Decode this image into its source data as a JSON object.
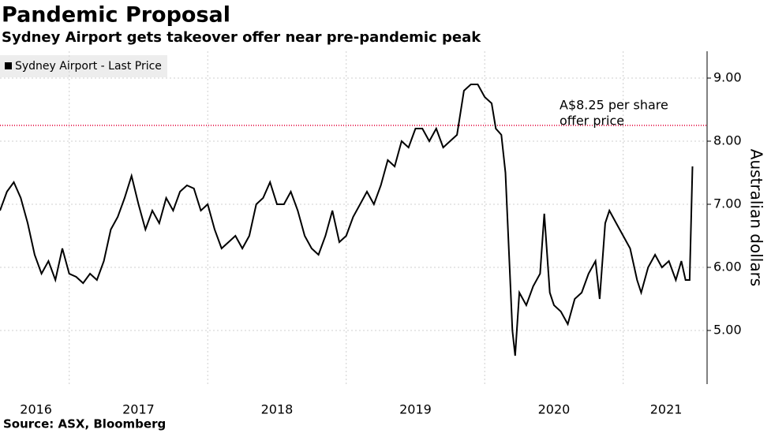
{
  "chart_data": {
    "type": "line",
    "title": "Pandemic Proposal",
    "subtitle": "Sydney Airport gets takeover offer near pre-pandemic peak",
    "y_label": "Australian dollars",
    "source": "Source: ASX, Bloomberg",
    "series": [
      {
        "name": "Sydney Airport - Last Price",
        "color": "#000000",
        "x": [
          2016.5,
          2016.55,
          2016.6,
          2016.65,
          2016.7,
          2016.75,
          2016.8,
          2016.85,
          2016.9,
          2016.95,
          2017.0,
          2017.05,
          2017.1,
          2017.15,
          2017.2,
          2017.25,
          2017.3,
          2017.35,
          2017.4,
          2017.45,
          2017.5,
          2017.55,
          2017.6,
          2017.65,
          2017.7,
          2017.75,
          2017.8,
          2017.85,
          2017.9,
          2017.95,
          2018.0,
          2018.05,
          2018.1,
          2018.15,
          2018.2,
          2018.25,
          2018.3,
          2018.35,
          2018.4,
          2018.45,
          2018.5,
          2018.55,
          2018.6,
          2018.65,
          2018.7,
          2018.75,
          2018.8,
          2018.85,
          2018.9,
          2018.95,
          2019.0,
          2019.05,
          2019.1,
          2019.15,
          2019.2,
          2019.25,
          2019.3,
          2019.35,
          2019.4,
          2019.45,
          2019.5,
          2019.55,
          2019.6,
          2019.65,
          2019.7,
          2019.75,
          2019.8,
          2019.85,
          2019.9,
          2019.95,
          2020.0,
          2020.05,
          2020.08,
          2020.12,
          2020.15,
          2020.18,
          2020.2,
          2020.22,
          2020.25,
          2020.3,
          2020.35,
          2020.4,
          2020.43,
          2020.47,
          2020.5,
          2020.55,
          2020.6,
          2020.65,
          2020.7,
          2020.75,
          2020.8,
          2020.83,
          2020.87,
          2020.9,
          2020.95,
          2021.0,
          2021.05,
          2021.1,
          2021.13,
          2021.18,
          2021.23,
          2021.28,
          2021.33,
          2021.38,
          2021.42,
          2021.45,
          2021.48,
          2021.5
        ],
        "values": [
          6.9,
          7.2,
          7.35,
          7.1,
          6.7,
          6.2,
          5.9,
          6.1,
          5.8,
          6.3,
          5.9,
          5.85,
          5.75,
          5.9,
          5.8,
          6.1,
          6.6,
          6.8,
          7.1,
          7.45,
          7.0,
          6.6,
          6.9,
          6.7,
          7.1,
          6.9,
          7.2,
          7.3,
          7.25,
          6.9,
          7.0,
          6.6,
          6.3,
          6.4,
          6.5,
          6.3,
          6.5,
          7.0,
          7.1,
          7.35,
          7.0,
          7.0,
          7.2,
          6.9,
          6.5,
          6.3,
          6.2,
          6.5,
          6.9,
          6.4,
          6.5,
          6.8,
          7.0,
          7.2,
          7.0,
          7.3,
          7.7,
          7.6,
          8.0,
          7.9,
          8.2,
          8.2,
          8.0,
          8.2,
          7.9,
          8.0,
          8.1,
          8.8,
          8.9,
          8.9,
          8.7,
          8.6,
          8.2,
          8.1,
          7.5,
          6.0,
          5.0,
          4.6,
          5.6,
          5.4,
          5.7,
          5.9,
          6.85,
          5.6,
          5.4,
          5.3,
          5.1,
          5.5,
          5.6,
          5.9,
          6.1,
          5.5,
          6.7,
          6.9,
          6.7,
          6.5,
          6.3,
          5.8,
          5.6,
          6.0,
          6.2,
          6.0,
          6.1,
          5.8,
          6.1,
          5.8,
          5.8,
          7.6
        ]
      }
    ],
    "xlim": [
      2016.5,
      2021.6
    ],
    "xticks": [
      {
        "value": 2016.76,
        "label": "2016"
      },
      {
        "value": 2017.5,
        "label": "2017"
      },
      {
        "value": 2018.5,
        "label": "2018"
      },
      {
        "value": 2019.5,
        "label": "2019"
      },
      {
        "value": 2020.5,
        "label": "2020"
      },
      {
        "value": 2021.31,
        "label": "2021"
      }
    ],
    "xgrid": [
      2017,
      2018,
      2019,
      2020,
      2021
    ],
    "ylim": [
      4.15,
      9.425
    ],
    "yticks": [
      {
        "value": 5,
        "label": "5.00"
      },
      {
        "value": 6,
        "label": "6.00"
      },
      {
        "value": 7,
        "label": "7.00"
      },
      {
        "value": 8,
        "label": "8.00"
      },
      {
        "value": 9,
        "label": "9.00"
      }
    ],
    "grid": true,
    "reference_line": {
      "value": 8.25,
      "color": "#e8335f",
      "label_lines": [
        "A$8.25 per share",
        "offer price"
      ]
    }
  }
}
